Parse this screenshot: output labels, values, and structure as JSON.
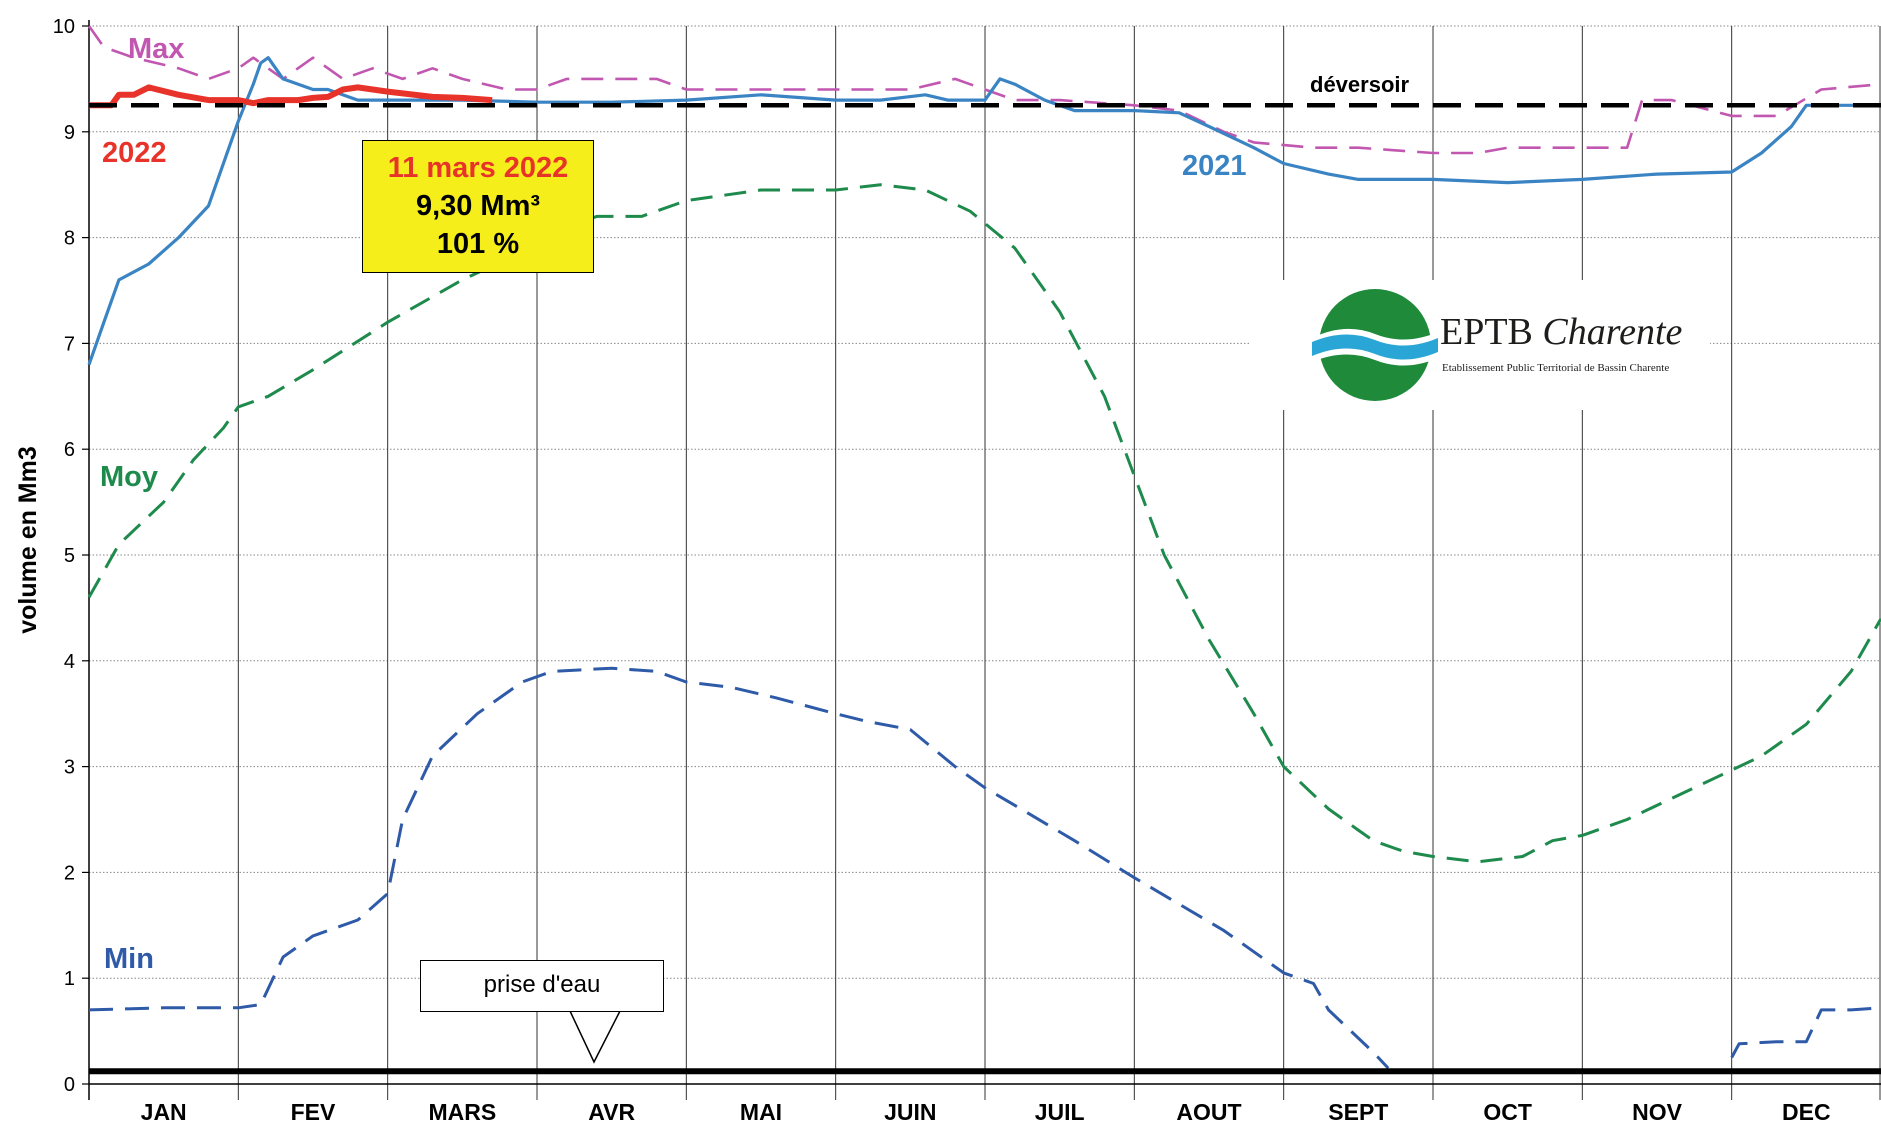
{
  "chart_data": {
    "type": "line",
    "ylabel": "volume en Mm3",
    "ylim": [
      0,
      10
    ],
    "yticks": [
      "0",
      "1",
      "2",
      "3",
      "4",
      "5",
      "6",
      "7",
      "8",
      "9",
      "10"
    ],
    "months": [
      "JAN",
      "FEV",
      "MARS",
      "AVR",
      "MAI",
      "JUIN",
      "JUIL",
      "AOUT",
      "SEPT",
      "OCT",
      "NOV",
      "DEC"
    ],
    "x_unit": "month index (0 = 1 JAN, 12 = 31 DEC)",
    "grid": true,
    "series": [
      {
        "name": "Max",
        "color": "#c157b0",
        "style": "dashed",
        "points": [
          [
            0,
            10.0
          ],
          [
            0.1,
            9.8
          ],
          [
            0.3,
            9.7
          ],
          [
            0.6,
            9.6
          ],
          [
            0.8,
            9.5
          ],
          [
            1.0,
            9.6
          ],
          [
            1.1,
            9.7
          ],
          [
            1.3,
            9.5
          ],
          [
            1.5,
            9.7
          ],
          [
            1.7,
            9.5
          ],
          [
            1.9,
            9.6
          ],
          [
            2.1,
            9.5
          ],
          [
            2.3,
            9.6
          ],
          [
            2.5,
            9.5
          ],
          [
            2.8,
            9.4
          ],
          [
            3.0,
            9.4
          ],
          [
            3.2,
            9.5
          ],
          [
            3.5,
            9.5
          ],
          [
            3.8,
            9.5
          ],
          [
            4.0,
            9.4
          ],
          [
            4.5,
            9.4
          ],
          [
            5.0,
            9.4
          ],
          [
            5.5,
            9.4
          ],
          [
            5.8,
            9.5
          ],
          [
            6.0,
            9.4
          ],
          [
            6.2,
            9.3
          ],
          [
            6.5,
            9.3
          ],
          [
            7.0,
            9.25
          ],
          [
            7.3,
            9.2
          ],
          [
            7.6,
            9.0
          ],
          [
            7.8,
            8.9
          ],
          [
            8.2,
            8.85
          ],
          [
            8.5,
            8.85
          ],
          [
            9.0,
            8.8
          ],
          [
            9.3,
            8.8
          ],
          [
            9.5,
            8.85
          ],
          [
            10.0,
            8.85
          ],
          [
            10.3,
            8.85
          ],
          [
            10.4,
            9.3
          ],
          [
            10.6,
            9.3
          ],
          [
            11.0,
            9.15
          ],
          [
            11.3,
            9.15
          ],
          [
            11.6,
            9.4
          ],
          [
            12.0,
            9.45
          ]
        ]
      },
      {
        "name": "2021",
        "color": "#3a84c4",
        "style": "solid",
        "points": [
          [
            0,
            6.8
          ],
          [
            0.1,
            7.2
          ],
          [
            0.2,
            7.6
          ],
          [
            0.4,
            7.75
          ],
          [
            0.6,
            8.0
          ],
          [
            0.8,
            8.3
          ],
          [
            0.9,
            8.7
          ],
          [
            1.0,
            9.1
          ],
          [
            1.1,
            9.45
          ],
          [
            1.15,
            9.65
          ],
          [
            1.2,
            9.7
          ],
          [
            1.3,
            9.5
          ],
          [
            1.5,
            9.4
          ],
          [
            1.6,
            9.4
          ],
          [
            1.8,
            9.3
          ],
          [
            2.0,
            9.3
          ],
          [
            2.5,
            9.3
          ],
          [
            3.0,
            9.28
          ],
          [
            3.5,
            9.28
          ],
          [
            4.0,
            9.3
          ],
          [
            4.5,
            9.35
          ],
          [
            5.0,
            9.3
          ],
          [
            5.3,
            9.3
          ],
          [
            5.6,
            9.35
          ],
          [
            5.75,
            9.3
          ],
          [
            6.0,
            9.3
          ],
          [
            6.1,
            9.5
          ],
          [
            6.2,
            9.45
          ],
          [
            6.4,
            9.3
          ],
          [
            6.6,
            9.2
          ],
          [
            7.0,
            9.2
          ],
          [
            7.3,
            9.18
          ],
          [
            7.5,
            9.05
          ],
          [
            7.8,
            8.85
          ],
          [
            8.0,
            8.7
          ],
          [
            8.3,
            8.6
          ],
          [
            8.5,
            8.55
          ],
          [
            9.0,
            8.55
          ],
          [
            9.5,
            8.52
          ],
          [
            10.0,
            8.55
          ],
          [
            10.5,
            8.6
          ],
          [
            11.0,
            8.62
          ],
          [
            11.2,
            8.8
          ],
          [
            11.4,
            9.05
          ],
          [
            11.5,
            9.25
          ],
          [
            12.0,
            9.25
          ]
        ]
      },
      {
        "name": "Moy",
        "color": "#1e8a4c",
        "style": "dashed",
        "points": [
          [
            0,
            4.6
          ],
          [
            0.2,
            5.1
          ],
          [
            0.5,
            5.5
          ],
          [
            0.7,
            5.9
          ],
          [
            0.9,
            6.2
          ],
          [
            1.0,
            6.4
          ],
          [
            1.2,
            6.5
          ],
          [
            1.5,
            6.75
          ],
          [
            2.0,
            7.2
          ],
          [
            2.5,
            7.6
          ],
          [
            2.8,
            7.8
          ],
          [
            3.0,
            8.0
          ],
          [
            3.2,
            8.1
          ],
          [
            3.4,
            8.2
          ],
          [
            3.7,
            8.2
          ],
          [
            4.0,
            8.35
          ],
          [
            4.5,
            8.45
          ],
          [
            5.0,
            8.45
          ],
          [
            5.3,
            8.5
          ],
          [
            5.6,
            8.45
          ],
          [
            5.9,
            8.25
          ],
          [
            6.2,
            7.9
          ],
          [
            6.5,
            7.3
          ],
          [
            6.8,
            6.5
          ],
          [
            7.0,
            5.75
          ],
          [
            7.2,
            5.0
          ],
          [
            7.5,
            4.2
          ],
          [
            7.8,
            3.5
          ],
          [
            8.0,
            3.0
          ],
          [
            8.3,
            2.6
          ],
          [
            8.5,
            2.4
          ],
          [
            8.6,
            2.3
          ],
          [
            8.8,
            2.2
          ],
          [
            9.0,
            2.15
          ],
          [
            9.3,
            2.1
          ],
          [
            9.6,
            2.15
          ],
          [
            9.8,
            2.3
          ],
          [
            10.0,
            2.35
          ],
          [
            10.3,
            2.5
          ],
          [
            10.6,
            2.7
          ],
          [
            10.9,
            2.9
          ],
          [
            11.2,
            3.1
          ],
          [
            11.5,
            3.4
          ],
          [
            11.8,
            3.9
          ],
          [
            12.0,
            4.4
          ]
        ]
      },
      {
        "name": "Min",
        "color": "#2e5aa8",
        "style": "dashed",
        "points": [
          [
            0,
            0.7
          ],
          [
            0.5,
            0.72
          ],
          [
            1.0,
            0.72
          ],
          [
            1.15,
            0.75
          ],
          [
            1.3,
            1.2
          ],
          [
            1.5,
            1.4
          ],
          [
            1.8,
            1.55
          ],
          [
            2.0,
            1.8
          ],
          [
            2.1,
            2.5
          ],
          [
            2.3,
            3.1
          ],
          [
            2.6,
            3.5
          ],
          [
            2.9,
            3.8
          ],
          [
            3.1,
            3.9
          ],
          [
            3.5,
            3.93
          ],
          [
            3.8,
            3.9
          ],
          [
            4.0,
            3.8
          ],
          [
            4.3,
            3.75
          ],
          [
            4.6,
            3.65
          ],
          [
            5.0,
            3.5
          ],
          [
            5.2,
            3.43
          ],
          [
            5.5,
            3.35
          ],
          [
            5.8,
            3.0
          ],
          [
            6.0,
            2.8
          ],
          [
            6.3,
            2.55
          ],
          [
            6.6,
            2.3
          ],
          [
            7.0,
            1.95
          ],
          [
            7.3,
            1.7
          ],
          [
            7.6,
            1.45
          ],
          [
            7.9,
            1.15
          ],
          [
            8.0,
            1.05
          ],
          [
            8.2,
            0.95
          ],
          [
            8.3,
            0.7
          ],
          [
            8.6,
            0.3
          ],
          [
            8.7,
            0.15
          ]
        ]
      },
      {
        "name": "Min",
        "color": "#2e5aa8",
        "style": "dashed",
        "points": [
          [
            11.0,
            0.25
          ],
          [
            11.05,
            0.38
          ],
          [
            11.3,
            0.4
          ],
          [
            11.5,
            0.4
          ],
          [
            11.6,
            0.7
          ],
          [
            11.8,
            0.7
          ],
          [
            12.0,
            0.72
          ]
        ]
      },
      {
        "name": "2022",
        "color": "#e8332a",
        "style": "solid",
        "points": [
          [
            0,
            9.25
          ],
          [
            0.15,
            9.25
          ],
          [
            0.2,
            9.35
          ],
          [
            0.3,
            9.35
          ],
          [
            0.4,
            9.42
          ],
          [
            0.6,
            9.35
          ],
          [
            0.8,
            9.3
          ],
          [
            1.0,
            9.3
          ],
          [
            1.1,
            9.27
          ],
          [
            1.2,
            9.3
          ],
          [
            1.4,
            9.3
          ],
          [
            1.5,
            9.32
          ],
          [
            1.6,
            9.33
          ],
          [
            1.7,
            9.4
          ],
          [
            1.8,
            9.42
          ],
          [
            2.0,
            9.38
          ],
          [
            2.3,
            9.33
          ],
          [
            2.5,
            9.32
          ],
          [
            2.7,
            9.3
          ]
        ]
      },
      {
        "name": "déversoir",
        "color": "#000000",
        "style": "dashed",
        "points": [
          [
            0,
            9.25
          ],
          [
            12.0,
            9.25
          ]
        ]
      },
      {
        "name": "prise d'eau",
        "color": "#000000",
        "style": "solid",
        "points": [
          [
            0,
            0.12
          ],
          [
            12.0,
            0.12
          ]
        ]
      }
    ],
    "labels": {
      "max": "Max",
      "y2021": "2021",
      "y2022": "2022",
      "moy": "Moy",
      "min": "Min",
      "deversoir": "déversoir",
      "prise": "prise d'eau"
    },
    "callout": {
      "date": "11 mars 2022",
      "volume": "9,30 Mm³",
      "percent": "101 %",
      "color": "#f5ee1a"
    }
  },
  "logo": {
    "title_plain": "EPTB",
    "title_italic": "Charente",
    "subtitle": "Etablissement Public Territorial de Bassin Charente"
  }
}
